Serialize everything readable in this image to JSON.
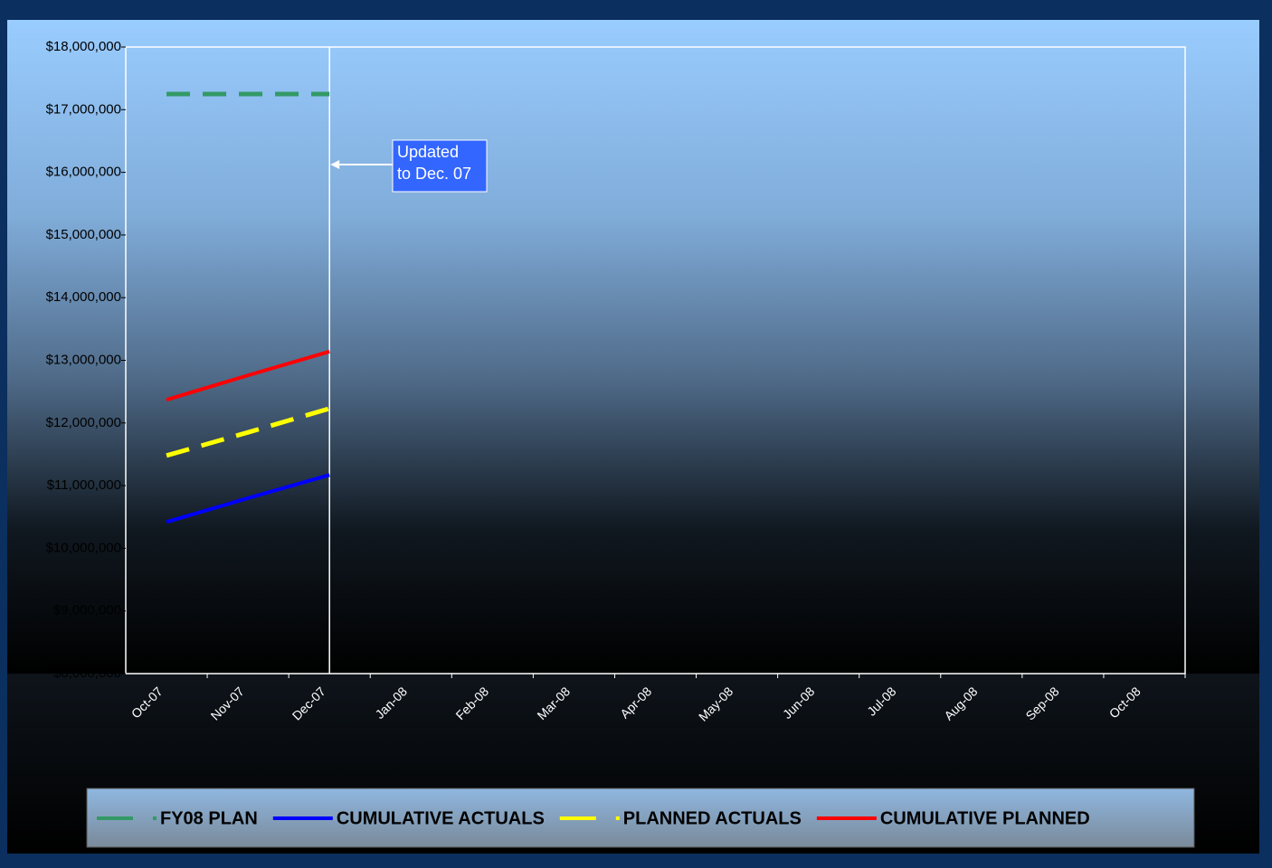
{
  "chart_data": {
    "type": "line",
    "categories": [
      "Oct-07",
      "Nov-07",
      "Dec-07",
      "Jan-08",
      "Feb-08",
      "Mar-08",
      "Apr-08",
      "May-08",
      "Jun-08",
      "Jul-08",
      "Aug-08",
      "Sep-08",
      "Oct-08"
    ],
    "series": [
      {
        "name": "FY08 PLAN",
        "color": "#339966",
        "dashed": true,
        "values": [
          17250000,
          17250000,
          17250000,
          null,
          null,
          null,
          null,
          null,
          null,
          null,
          null,
          null,
          null
        ]
      },
      {
        "name": "CUMULATIVE ACTUALS",
        "color": "#0000ff",
        "dashed": false,
        "values": [
          10420000,
          10800000,
          11170000,
          null,
          null,
          null,
          null,
          null,
          null,
          null,
          null,
          null,
          null
        ]
      },
      {
        "name": "PLANNED ACTUALS",
        "color": "#ffff00",
        "dashed": true,
        "values": [
          11480000,
          11850000,
          12230000,
          null,
          null,
          null,
          null,
          null,
          null,
          null,
          null,
          null,
          null
        ]
      },
      {
        "name": "CUMULATIVE PLANNED",
        "color": "#ff0000",
        "dashed": false,
        "values": [
          12370000,
          12760000,
          13140000,
          null,
          null,
          null,
          null,
          null,
          null,
          null,
          null,
          null,
          null
        ]
      }
    ],
    "ylim": [
      8000000,
      18000000
    ],
    "yticks": [
      {
        "value": 8000000,
        "label": "$8,000,000"
      },
      {
        "value": 9000000,
        "label": "$9,000,000"
      },
      {
        "value": 10000000,
        "label": "$10,000,000"
      },
      {
        "value": 11000000,
        "label": "$11,000,000"
      },
      {
        "value": 12000000,
        "label": "$12,000,000"
      },
      {
        "value": 13000000,
        "label": "$13,000,000"
      },
      {
        "value": 14000000,
        "label": "$14,000,000"
      },
      {
        "value": 15000000,
        "label": "$15,000,000"
      },
      {
        "value": 16000000,
        "label": "$16,000,000"
      },
      {
        "value": 17000000,
        "label": "$17,000,000"
      },
      {
        "value": 18000000,
        "label": "$18,000,000"
      }
    ],
    "annotation": [
      "Updated",
      "to Dec. 07"
    ],
    "grid": false,
    "legend": "bottom"
  }
}
